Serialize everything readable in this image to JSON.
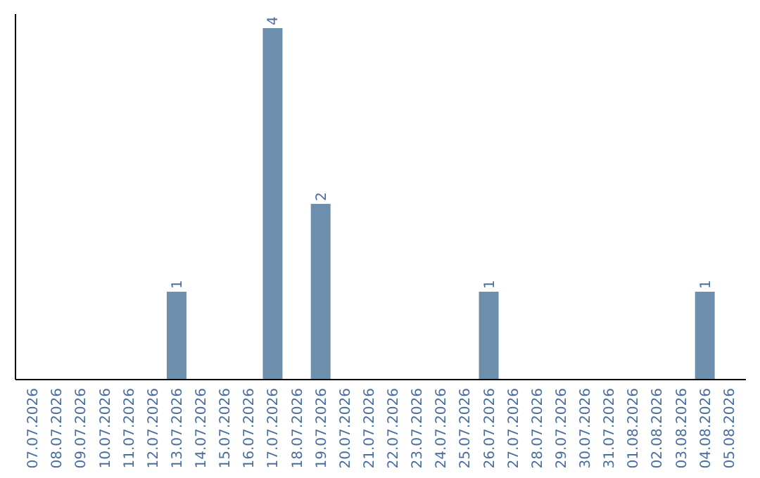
{
  "chart_data": {
    "type": "bar",
    "categories": [
      "07.07.2026",
      "08.07.2026",
      "09.07.2026",
      "10.07.2026",
      "11.07.2026",
      "12.07.2026",
      "13.07.2026",
      "14.07.2026",
      "15.07.2026",
      "16.07.2026",
      "17.07.2026",
      "18.07.2026",
      "19.07.2026",
      "20.07.2026",
      "21.07.2026",
      "22.07.2026",
      "23.07.2026",
      "24.07.2026",
      "25.07.2026",
      "26.07.2026",
      "27.07.2026",
      "28.07.2026",
      "29.07.2026",
      "30.07.2026",
      "31.07.2026",
      "01.08.2026",
      "02.08.2026",
      "03.08.2026",
      "04.08.2026",
      "05.08.2026"
    ],
    "values": [
      0,
      0,
      0,
      0,
      0,
      0,
      1,
      0,
      0,
      0,
      4,
      0,
      2,
      0,
      0,
      0,
      0,
      0,
      0,
      1,
      0,
      0,
      0,
      0,
      0,
      0,
      0,
      0,
      1,
      0
    ],
    "value_labels": [
      null,
      null,
      null,
      null,
      null,
      null,
      "1",
      null,
      null,
      null,
      "4",
      null,
      "2",
      null,
      null,
      null,
      null,
      null,
      null,
      "1",
      null,
      null,
      null,
      null,
      null,
      null,
      null,
      null,
      "1",
      null
    ],
    "color": "#6d8eac",
    "tick_labels": "x",
    "grid": false
  }
}
